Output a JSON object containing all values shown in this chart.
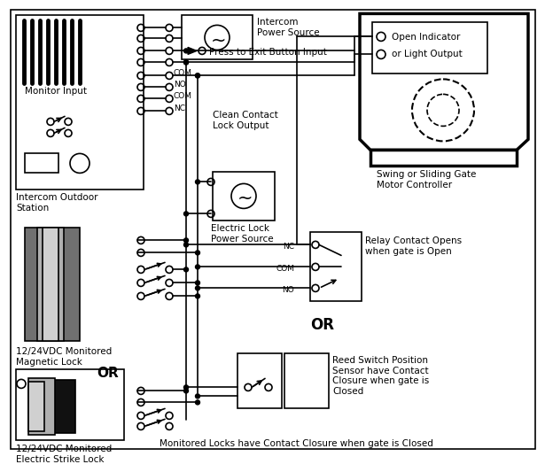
{
  "bg": "#ffffff",
  "lc": "#000000",
  "lw": 1.2,
  "gray_dark": "#707070",
  "gray_mid": "#b0b0b0",
  "gray_light": "#d0d0d0",
  "texts": {
    "monitor_input": "Monitor Input",
    "intercom_station": "Intercom Outdoor\nStation",
    "intercom_ps": "Intercom\nPower Source",
    "press_exit": "Press to Exit Button Input",
    "clean_contact": "Clean Contact\nLock Output",
    "electric_lock_ps": "Electric Lock\nPower Source",
    "magnetic_lock": "12/24VDC Monitored\nMagnetic Lock",
    "or1": "OR",
    "electric_strike": "12/24VDC Monitored\nElectric Strike Lock",
    "gate_motor": "Swing or Sliding Gate\nMotor Controller",
    "open_indicator": "Open Indicator\nor Light Output",
    "relay_label": "Relay Contact Opens\nwhen gate is Open",
    "or2": "OR",
    "reed_label": "Reed Switch Position\nSensor have Contact\nClosure when gate is\nClosed",
    "bottom": "Monitored Locks have Contact Closure when gate is Closed",
    "com_top": "COM",
    "no_lbl": "NO",
    "com_mid": "COM",
    "nc_lbl": "NC",
    "relay_nc": "NC",
    "relay_com": "COM",
    "relay_no": "NO"
  }
}
